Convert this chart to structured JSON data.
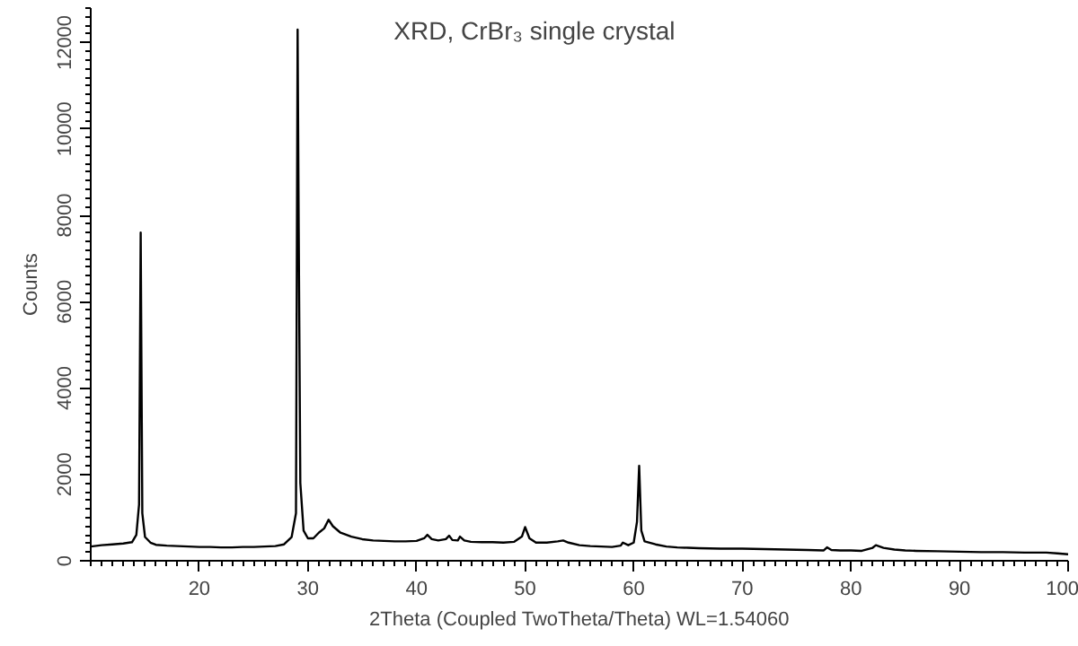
{
  "chart_data": {
    "type": "line",
    "title": "XRD, CrBr₃ single crystal",
    "xlabel": "2Theta (Coupled TwoTheta/Theta) WL=1.54060",
    "ylabel": "Counts",
    "x": [
      10,
      11,
      12,
      13,
      13.8,
      14.2,
      14.45,
      14.6,
      14.75,
      15,
      15.5,
      16,
      17,
      18,
      19,
      20,
      21,
      22,
      23,
      24,
      25,
      26,
      27,
      27.8,
      28.5,
      28.9,
      29.05,
      29.15,
      29.3,
      29.6,
      30,
      30.5,
      31,
      31.5,
      31.9,
      32.3,
      33,
      34,
      35,
      36,
      37,
      38,
      39,
      40,
      40.7,
      41,
      41.4,
      42,
      42.7,
      43,
      43.3,
      43.8,
      44,
      44.4,
      45,
      46,
      47,
      48,
      49,
      49.7,
      50,
      50.4,
      51,
      52,
      53,
      53.5,
      54,
      55,
      56,
      57,
      58,
      58.8,
      59,
      59.5,
      60,
      60.3,
      60.5,
      60.7,
      61,
      62,
      63,
      64,
      65,
      66,
      68,
      70,
      72,
      74,
      76,
      77.5,
      77.8,
      78.2,
      79,
      80,
      81,
      82,
      82.3,
      83,
      84,
      85,
      86,
      88,
      90,
      92,
      94,
      96,
      98,
      99,
      100
    ],
    "series": [
      {
        "color": "#000000",
        "values": [
          330,
          360,
          380,
          400,
          430,
          600,
          1300,
          7600,
          1100,
          550,
          420,
          370,
          350,
          340,
          330,
          320,
          320,
          310,
          310,
          320,
          320,
          330,
          340,
          380,
          550,
          1100,
          12300,
          7700,
          1800,
          700,
          520,
          520,
          650,
          750,
          950,
          800,
          650,
          560,
          500,
          470,
          460,
          450,
          450,
          460,
          520,
          600,
          500,
          470,
          500,
          580,
          480,
          470,
          560,
          470,
          440,
          430,
          430,
          420,
          440,
          560,
          780,
          520,
          420,
          420,
          450,
          470,
          420,
          360,
          340,
          330,
          320,
          350,
          420,
          360,
          420,
          900,
          2200,
          700,
          450,
          380,
          330,
          310,
          300,
          290,
          280,
          280,
          270,
          260,
          250,
          240,
          310,
          250,
          240,
          240,
          230,
          300,
          360,
          300,
          260,
          240,
          230,
          220,
          210,
          200,
          200,
          190,
          190,
          170,
          150
        ]
      }
    ],
    "xlim": [
      10,
      100
    ],
    "ylim": [
      0,
      12800
    ],
    "xticks": [
      20,
      30,
      40,
      50,
      60,
      70,
      80,
      90,
      100
    ],
    "yticks": [
      0,
      2000,
      4000,
      6000,
      8000,
      10000,
      12000
    ],
    "grid": false
  }
}
